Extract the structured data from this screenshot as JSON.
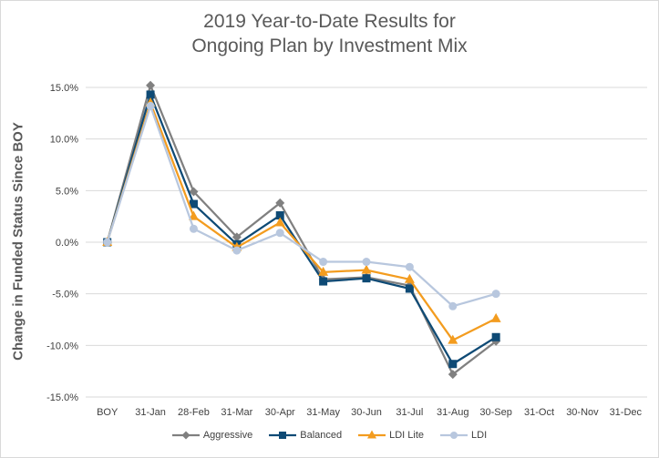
{
  "chart_data": {
    "type": "line",
    "title_lines": [
      "2019 Year-to-Date Results for",
      "Ongoing Plan by Investment Mix"
    ],
    "xlabel": "",
    "ylabel": "Change in Funded Status Since BOY",
    "categories": [
      "BOY",
      "31-Jan",
      "28-Feb",
      "31-Mar",
      "30-Apr",
      "31-May",
      "30-Jun",
      "31-Jul",
      "31-Aug",
      "30-Sep",
      "31-Oct",
      "30-Nov",
      "31-Dec"
    ],
    "ylim": [
      -0.15,
      0.15
    ],
    "yticks": [
      0.15,
      0.1,
      0.05,
      0.0,
      -0.05,
      -0.1,
      -0.15
    ],
    "ytick_labels": [
      "15.0%",
      "10.0%",
      "5.0%",
      "0.0%",
      "-5.0%",
      "-10.0%",
      "-15.0%"
    ],
    "grid": "horizontal",
    "legend_position": "bottom",
    "series": [
      {
        "name": "Aggressive",
        "color": "#808080",
        "marker": "diamond",
        "values": [
          0.0,
          0.152,
          0.049,
          0.005,
          0.038,
          -0.036,
          -0.034,
          -0.042,
          -0.128,
          -0.096,
          null,
          null,
          null
        ]
      },
      {
        "name": "Balanced",
        "color": "#0e4a75",
        "marker": "square",
        "values": [
          0.0,
          0.143,
          0.037,
          -0.002,
          0.026,
          -0.038,
          -0.035,
          -0.045,
          -0.118,
          -0.092,
          null,
          null,
          null
        ]
      },
      {
        "name": "LDI Lite",
        "color": "#f39c1f",
        "marker": "triangle",
        "values": [
          0.0,
          0.135,
          0.025,
          -0.005,
          0.019,
          -0.029,
          -0.027,
          -0.036,
          -0.095,
          -0.074,
          null,
          null,
          null
        ]
      },
      {
        "name": "LDI",
        "color": "#b8c7de",
        "marker": "circle",
        "values": [
          0.0,
          0.132,
          0.013,
          -0.008,
          0.009,
          -0.019,
          -0.019,
          -0.024,
          -0.062,
          -0.05,
          null,
          null,
          null
        ]
      }
    ]
  }
}
